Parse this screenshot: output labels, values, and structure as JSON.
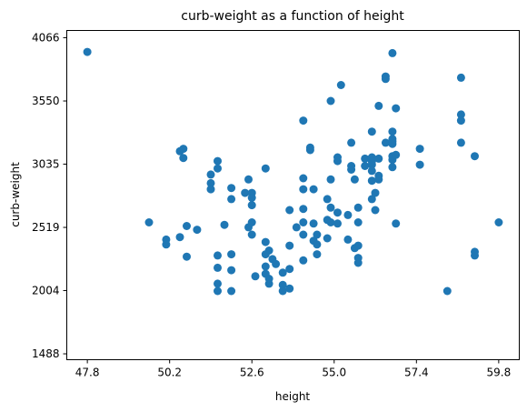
{
  "chart_data": {
    "type": "scatter",
    "title": "curb-weight as a function of height",
    "xlabel": "height",
    "ylabel": "curb-weight",
    "xlim": [
      47.2,
      60.4
    ],
    "ylim": [
      1440,
      4125
    ],
    "xticks": [
      47.8,
      50.2,
      52.6,
      55.0,
      57.4,
      59.8
    ],
    "xtick_labels": [
      "47.8",
      "50.2",
      "52.6",
      "55.0",
      "57.4",
      "59.8"
    ],
    "yticks": [
      1488,
      2004,
      2519,
      3035,
      3550,
      4066
    ],
    "ytick_labels": [
      "1488",
      "2004",
      "2519",
      "3035",
      "3550",
      "4066"
    ],
    "grid": false,
    "marker_color": "#1f77b4",
    "series": [
      {
        "x": [
          47.8,
          49.6,
          50.1,
          50.1,
          50.5,
          50.5,
          50.6,
          50.6,
          50.7,
          50.7,
          51.0,
          51.4,
          51.4,
          51.4,
          51.6,
          51.6,
          51.6,
          51.6,
          51.6,
          51.6,
          51.8,
          52.0,
          52.0,
          52.0,
          52.0,
          52.0,
          52.4,
          52.5,
          52.5,
          52.6,
          52.6,
          52.6,
          52.6,
          52.6,
          52.7,
          53.0,
          53.0,
          53.0,
          53.0,
          53.0,
          53.1,
          53.1,
          53.1,
          53.2,
          53.3,
          53.5,
          53.5,
          53.5,
          53.7,
          53.7,
          53.7,
          53.7,
          53.9,
          54.1,
          54.1,
          54.1,
          54.1,
          54.1,
          54.1,
          54.1,
          54.3,
          54.3,
          54.4,
          54.4,
          54.4,
          54.5,
          54.5,
          54.5,
          54.8,
          54.8,
          54.8,
          54.9,
          54.9,
          54.9,
          54.9,
          55.1,
          55.1,
          55.1,
          55.1,
          55.2,
          55.4,
          55.4,
          55.5,
          55.5,
          55.5,
          55.6,
          55.6,
          55.7,
          55.7,
          55.7,
          55.7,
          55.7,
          55.9,
          55.9,
          56.1,
          56.1,
          56.1,
          56.1,
          56.1,
          56.1,
          56.1,
          56.2,
          56.2,
          56.3,
          56.3,
          56.3,
          56.3,
          56.5,
          56.5,
          56.5,
          56.7,
          56.7,
          56.7,
          56.7,
          56.7,
          56.7,
          56.7,
          56.7,
          56.8,
          56.8,
          56.8,
          57.5,
          57.5,
          58.3,
          58.7,
          58.7,
          58.7,
          58.7,
          59.1,
          59.1,
          59.1,
          59.8
        ],
        "y": [
          3950,
          2560,
          2380,
          2420,
          2440,
          3140,
          3160,
          3085,
          2280,
          2530,
          2500,
          2880,
          2950,
          2830,
          3060,
          3000,
          2000,
          2290,
          2060,
          2190,
          2540,
          2750,
          2840,
          2300,
          2170,
          2000,
          2800,
          2910,
          2520,
          2800,
          2700,
          2460,
          2560,
          2760,
          2120,
          2300,
          2400,
          3000,
          2200,
          2140,
          2060,
          2100,
          2330,
          2260,
          2220,
          2050,
          2150,
          2000,
          2180,
          2020,
          2370,
          2660,
          2520,
          3390,
          2250,
          2460,
          2830,
          2920,
          2670,
          2560,
          3150,
          3170,
          2550,
          2410,
          2830,
          2460,
          2380,
          2300,
          2430,
          2580,
          2750,
          3550,
          2910,
          2560,
          2680,
          3060,
          3090,
          2550,
          2640,
          3680,
          2420,
          2620,
          3210,
          3020,
          2990,
          2350,
          2910,
          2230,
          2270,
          2370,
          2560,
          2680,
          3020,
          3080,
          3300,
          3090,
          3030,
          2980,
          2900,
          2750,
          3060,
          2800,
          2660,
          3510,
          3080,
          2910,
          2940,
          3210,
          3750,
          3730,
          3200,
          3240,
          3300,
          3070,
          3010,
          3220,
          3100,
          3940,
          3110,
          2550,
          3490,
          3160,
          3030,
          2000,
          3440,
          3210,
          3740,
          3390,
          3100,
          2290,
          2320,
          2560
        ],
        "y_note_removed": null
      }
    ]
  }
}
